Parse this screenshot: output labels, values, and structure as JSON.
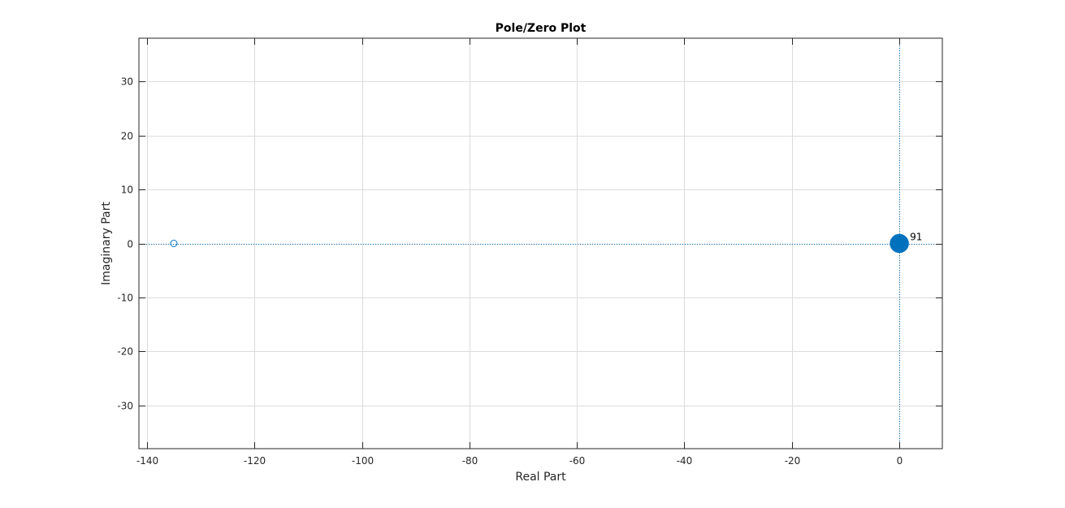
{
  "chart_data": {
    "type": "scatter",
    "title": "Pole/Zero Plot",
    "xlabel": "Real Part",
    "ylabel": "Imaginary Part",
    "xlim": [
      -141.5,
      8
    ],
    "ylim": [
      -38,
      38
    ],
    "xticks": [
      -140,
      -120,
      -100,
      -80,
      -60,
      -40,
      -20,
      0
    ],
    "yticks": [
      -30,
      -20,
      -10,
      0,
      10,
      20,
      30
    ],
    "xtick_labels": [
      "-140",
      "-120",
      "-100",
      "-80",
      "-60",
      "-40",
      "-20",
      "0"
    ],
    "ytick_labels": [
      "-30",
      "-20",
      "-10",
      "0",
      "10",
      "20",
      "30"
    ],
    "grid": true,
    "reference_lines": {
      "x": 0,
      "y": 0,
      "style": "dotted"
    },
    "series": [
      {
        "marker": "zero",
        "points": [
          {
            "x": -135,
            "y": 0
          }
        ]
      },
      {
        "marker": "pole",
        "points": [
          {
            "x": 0,
            "y": 0
          }
        ]
      }
    ],
    "annotations": [
      {
        "text": "91",
        "x": 0,
        "y": 0
      }
    ],
    "colors": {
      "marker": "#0072BD",
      "grid": "#dcdcdc",
      "axes": "#262626"
    }
  }
}
